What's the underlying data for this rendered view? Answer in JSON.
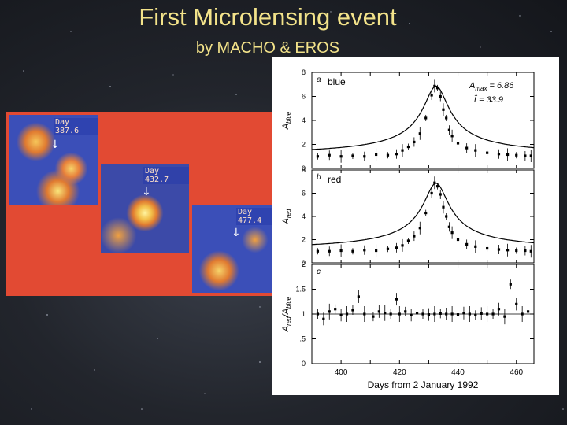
{
  "slide": {
    "title": "First Microlensing event",
    "subtitle": "by MACHO & EROS"
  },
  "images": {
    "days": [
      "Day 387.6",
      "Day 432.7",
      "Day 477.4"
    ]
  },
  "chart_data": [
    {
      "type": "scatter",
      "panel_label": "a",
      "series_name": "blue",
      "ylabel_main": "A",
      "ylabel_sub": "blue",
      "annotations": [
        "A",
        "max",
        "= 6.86",
        "t̂ = 33.9"
      ],
      "ylim": [
        0,
        8
      ],
      "yticks": [
        0,
        2,
        4,
        6,
        8
      ],
      "xlim": [
        390,
        466
      ],
      "x": [
        392,
        396,
        400,
        404,
        408,
        412,
        416,
        419,
        421,
        423,
        425,
        427,
        429,
        431,
        432,
        433,
        434,
        435,
        436,
        437,
        438,
        440,
        443,
        446,
        450,
        454,
        457,
        460,
        463,
        465
      ],
      "y": [
        1.0,
        1.1,
        1.0,
        1.05,
        1.0,
        1.15,
        1.1,
        1.2,
        1.5,
        1.8,
        2.2,
        2.9,
        4.2,
        6.1,
        6.86,
        6.7,
        6.0,
        4.9,
        4.2,
        3.2,
        2.7,
        2.1,
        1.7,
        1.5,
        1.3,
        1.2,
        1.15,
        1.1,
        1.05,
        1.05
      ]
    },
    {
      "type": "scatter",
      "panel_label": "b",
      "series_name": "red",
      "ylabel_main": "A",
      "ylabel_sub": "red",
      "ylim": [
        0,
        8
      ],
      "yticks": [
        0,
        2,
        4,
        6,
        8
      ],
      "xlim": [
        390,
        466
      ],
      "x": [
        392,
        396,
        400,
        404,
        408,
        412,
        416,
        419,
        421,
        423,
        425,
        427,
        429,
        431,
        432,
        433,
        434,
        435,
        436,
        437,
        438,
        440,
        443,
        446,
        450,
        454,
        457,
        460,
        463,
        465
      ],
      "y": [
        1.0,
        1.0,
        1.05,
        1.0,
        1.1,
        1.05,
        1.2,
        1.3,
        1.5,
        1.9,
        2.3,
        3.0,
        4.3,
        6.0,
        6.9,
        6.6,
        5.9,
        4.8,
        4.0,
        3.1,
        2.6,
        2.0,
        1.6,
        1.4,
        1.25,
        1.15,
        1.1,
        1.05,
        1.05,
        1.0
      ]
    },
    {
      "type": "scatter",
      "panel_label": "c",
      "ylabel_main": "A",
      "ylabel_sub": "red",
      "ylabel_mid": "/A",
      "ylabel_sub2": "blue",
      "ylim": [
        0,
        2
      ],
      "yticks": [
        0,
        0.5,
        1,
        1.5,
        2
      ],
      "ytick_labels": [
        "0",
        ".5",
        "1",
        "1.5",
        "2"
      ],
      "xlim": [
        390,
        466
      ],
      "xticks": [
        400,
        420,
        440,
        460
      ],
      "xlabel": "Days from 2 January 1992",
      "x": [
        392,
        394,
        396,
        398,
        400,
        402,
        404,
        406,
        408,
        411,
        413,
        415,
        417,
        419,
        420,
        422,
        424,
        426,
        428,
        430,
        432,
        434,
        436,
        438,
        440,
        442,
        444,
        446,
        448,
        450,
        452,
        454,
        456,
        458,
        460,
        462,
        464
      ],
      "y": [
        1.0,
        0.9,
        1.05,
        1.1,
        0.98,
        1.0,
        1.08,
        1.35,
        1.0,
        0.95,
        1.05,
        1.02,
        1.0,
        1.3,
        1.0,
        1.05,
        0.98,
        1.02,
        1.0,
        0.99,
        1.0,
        1.01,
        1.0,
        1.0,
        0.99,
        1.02,
        1.0,
        0.98,
        1.01,
        1.0,
        1.0,
        1.1,
        0.95,
        1.6,
        1.2,
        1.0,
        1.05
      ]
    }
  ]
}
